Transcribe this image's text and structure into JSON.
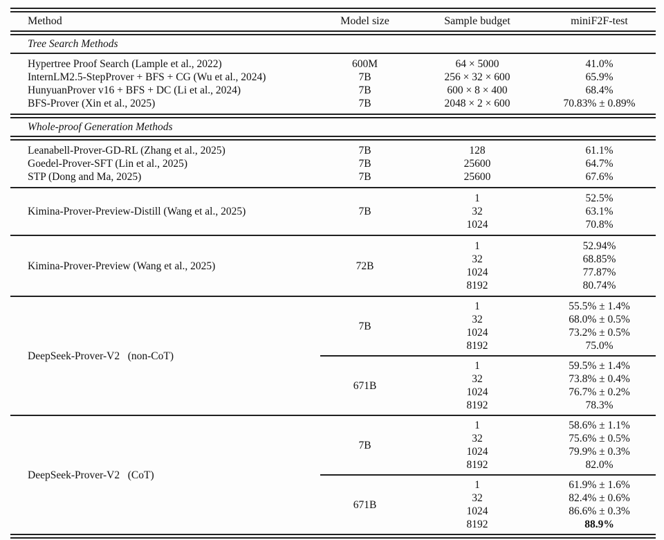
{
  "header": {
    "col_method": "Method",
    "col_model_size": "Model size",
    "col_sample_budget": "Sample budget",
    "col_minif2f": "miniF2F-test"
  },
  "tree_section": {
    "title": "Tree Search Methods",
    "rows": [
      {
        "method": "Hypertree Proof Search (Lample et al., 2022)",
        "size": "600M",
        "budget": "64 × 5000",
        "result": "41.0%"
      },
      {
        "method": "InternLM2.5-StepProver + BFS + CG (Wu et al., 2024)",
        "size": "7B",
        "budget": "256 × 32 × 600",
        "result": "65.9%"
      },
      {
        "method": "HunyuanProver v16 + BFS + DC (Li et al., 2024)",
        "size": "7B",
        "budget": "600 × 8 × 400",
        "result": "68.4%"
      },
      {
        "method": "BFS-Prover (Xin et al., 2025)",
        "size": "7B",
        "budget": "2048 × 2 × 600",
        "result": "70.83% ± 0.89%"
      }
    ]
  },
  "whole_section": {
    "title": "Whole-proof Generation Methods",
    "simple_rows": [
      {
        "method": "Leanabell-Prover-GD-RL (Zhang et al., 2025)",
        "size": "7B",
        "budget": "128",
        "result": "61.1%"
      },
      {
        "method": "Goedel-Prover-SFT (Lin et al., 2025)",
        "size": "7B",
        "budget": "25600",
        "result": "64.7%"
      },
      {
        "method": "STP (Dong and Ma, 2025)",
        "size": "7B",
        "budget": "25600",
        "result": "67.6%"
      }
    ],
    "kimina_distill": {
      "method": "Kimina-Prover-Preview-Distill (Wang et al., 2025)",
      "size": "7B",
      "budgets": [
        "1",
        "32",
        "1024"
      ],
      "results": [
        "52.5%",
        "63.1%",
        "70.8%"
      ]
    },
    "kimina_preview": {
      "method": "Kimina-Prover-Preview (Wang et al., 2025)",
      "size": "72B",
      "budgets": [
        "1",
        "32",
        "1024",
        "8192"
      ],
      "results": [
        "52.94%",
        "68.85%",
        "77.87%",
        "80.74%"
      ]
    },
    "dsv2_noncot": {
      "method": "DeepSeek-Prover-V2   (non-CoT)",
      "blocks": [
        {
          "size": "7B",
          "budgets": [
            "1",
            "32",
            "1024",
            "8192"
          ],
          "results": [
            "55.5% ± 1.4%",
            "68.0% ± 0.5%",
            "73.2% ± 0.5%",
            "75.0%"
          ]
        },
        {
          "size": "671B",
          "budgets": [
            "1",
            "32",
            "1024",
            "8192"
          ],
          "results": [
            "59.5% ± 1.4%",
            "73.8% ± 0.4%",
            "76.7% ± 0.2%",
            "78.3%"
          ]
        }
      ]
    },
    "dsv2_cot": {
      "method": "DeepSeek-Prover-V2   (CoT)",
      "blocks": [
        {
          "size": "7B",
          "budgets": [
            "1",
            "32",
            "1024",
            "8192"
          ],
          "results": [
            "58.6% ± 1.1%",
            "75.6% ± 0.5%",
            "79.9% ± 0.3%",
            "82.0%"
          ]
        },
        {
          "size": "671B",
          "budgets": [
            "1",
            "32",
            "1024",
            "8192"
          ],
          "results": [
            "61.9% ± 1.6%",
            "82.4% ± 0.6%",
            "86.6% ± 0.3%",
            "88.9%"
          ]
        }
      ]
    }
  },
  "colors": {
    "text": "#111111",
    "rule": "#1f1f1f",
    "background": "#fdfdfd"
  }
}
